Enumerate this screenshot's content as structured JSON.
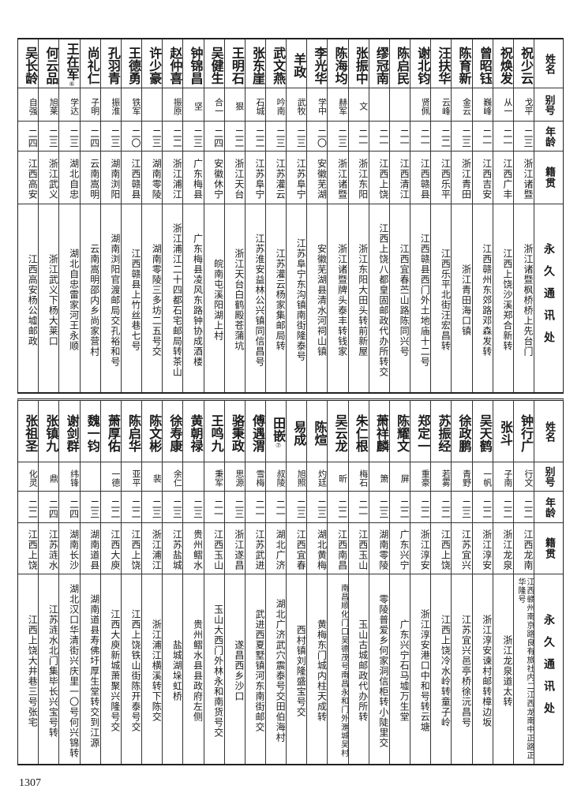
{
  "header": {
    "name": "姓名",
    "alias": "别号",
    "age": "年龄",
    "native": "籍贯",
    "address": "永久通讯处"
  },
  "top_rows": [
    {
      "name": "祝少云",
      "alias": "戈平",
      "age": "二三",
      "native": "浙江诸暨",
      "address": "浙江诸暨枫桥桥上先台门"
    },
    {
      "name": "祝焕发",
      "alias": "从一",
      "age": "二一",
      "native": "江西广丰",
      "address": "江西上饶沙溪郑合新转"
    },
    {
      "name": "曾昭钰",
      "alias": "巍峰",
      "age": "二一",
      "native": "江西吉安",
      "address": "江西赣州东郊路邓森发转"
    },
    {
      "name": "陈育新",
      "alias": "金云",
      "age": "二三",
      "native": "浙江青田",
      "address": "浙江青田海口镇"
    },
    {
      "name": "汪扶华",
      "alias": "云峰",
      "age": "二二",
      "native": "江西乐平",
      "address": "江西乐平北街汪宏昌转"
    },
    {
      "name": "谢北钧",
      "alias": "贤佩",
      "age": "二一",
      "native": "江西赣县",
      "address": "江西赣县西门外土地庙十二号"
    },
    {
      "name": "陈启民",
      "alias": "",
      "age": "二一",
      "native": "江西清江",
      "address": "江西宜春苎山路陈同兴号"
    },
    {
      "name": "缪冠南",
      "alias": "",
      "age": "二一",
      "native": "江西上饶",
      "address": "江西上饶八都皇固邮政代办所转交"
    },
    {
      "name": "张振中",
      "alias": "文",
      "age": "二一",
      "native": "浙江东阳",
      "address": "浙江东阳大田头转前新屋"
    },
    {
      "name": "陈海均",
      "alias": "赫军",
      "age": "二三",
      "native": "浙江诸暨",
      "address": "浙江诸暨牌头泰丰转钱家"
    },
    {
      "name": "李光华",
      "alias": "学中",
      "age": "二〇",
      "native": "安徽芜湖",
      "address": "安徽芜湖县清水河祠山镇"
    },
    {
      "name": "羊政",
      "alias": "武牧",
      "age": "二三",
      "native": "江苏阜宁",
      "address": "江苏阜宁东沟镇南街隆泰号"
    },
    {
      "name": "武文燕",
      "alias": "吟南",
      "age": "二三",
      "native": "江苏灌云",
      "address": "江苏灌云杨家集邮局转"
    },
    {
      "name": "张东崖",
      "alias": "石城",
      "age": "二二",
      "native": "江苏阜宁",
      "address": "江苏淮安益林公兴镇同信昌号"
    },
    {
      "name": "王明石",
      "alias": "狠",
      "age": "二二",
      "native": "浙江天台",
      "address": "浙江天台白鹤殿苍蒲坑"
    },
    {
      "name": "吴健生",
      "alias": "合一",
      "age": "二四",
      "native": "安徽休宁",
      "address": "皖南屯溪阳湖上村"
    },
    {
      "name": "钟锦昌",
      "alias": "坚",
      "age": "二三",
      "native": "广东梅县",
      "address": "广东梅县凌风东路钟协成酒楼"
    },
    {
      "name": "赵仲喜",
      "alias": "振原",
      "age": "二二",
      "native": "浙江浦江",
      "address": "浙江浦江二十四都石宅邮局转茶山"
    },
    {
      "name": "许少豪",
      "alias": "",
      "age": "二三",
      "native": "湖南零陵",
      "address": "湖南零陵三多坊二五号交"
    },
    {
      "name": "王德勇",
      "alias": "铁军",
      "age": "二〇",
      "native": "江西赣县",
      "address": "江西赣县上竹丝巷七号"
    },
    {
      "name": "孔羽青",
      "alias": "振淮",
      "age": "二三",
      "native": "湖南浏阳",
      "address": "湖南浏阳官渡邮局交孔裕和号"
    },
    {
      "name": "尚礼仁",
      "alias": "子明",
      "age": "二四",
      "native": "云南嵩明",
      "address": "云南嵩明邵内乡尚家营村"
    },
    {
      "name": "王在军",
      "note": "⑥",
      "alias": "学达",
      "age": "二三",
      "native": "湖北自忠",
      "address": "湖北自忠雷家河王永顺"
    },
    {
      "name": "何云品",
      "alias": "旭莱",
      "age": "二三",
      "native": "浙江武义",
      "address": "浙江武义下杨大莱口"
    },
    {
      "name": "吴长龄",
      "alias": "自强",
      "age": "二四",
      "native": "江西高安",
      "address": "江西高安杨公墟邮政"
    }
  ],
  "bottom_rows": [
    {
      "name": "钟行广",
      "alias": "行文",
      "age": "二二",
      "native": "江西龙南",
      "address": "江西赣州南京路良有旅社内二江西龙南中正路正华隆号"
    },
    {
      "name": "张斗",
      "alias": "子南",
      "age": "二二",
      "native": "浙江龙泉",
      "address": "浙江龙泉道太转"
    },
    {
      "name": "吴天鹤",
      "alias": "一帆",
      "age": "二二",
      "native": "浙江淳安",
      "address": "浙江淳安谏村邮转樟边坂"
    },
    {
      "name": "徐政鹏",
      "alias": "青野",
      "age": "二三",
      "native": "江苏宜兴",
      "address": "江苏宜兴邑亭桥徐沅昌号"
    },
    {
      "name": "苏振经",
      "alias": "若雾",
      "age": "二二",
      "native": "江西上饶",
      "address": "江西上饶冷水岭转童子岭"
    },
    {
      "name": "郑定一",
      "alias": "重豪",
      "age": "二二",
      "native": "浙江淳安",
      "address": "浙江淳安港口中和号转云塘"
    },
    {
      "name": "陈耀文",
      "alias": "屏",
      "age": "二二",
      "native": "广东兴宁",
      "address": "广东兴宁石马墟万生堂"
    },
    {
      "name": "萧祥麟",
      "alias": "箫",
      "age": "二三",
      "native": "湖南零陵",
      "address": "零陵普爱乡何家洞信柜转小陡里交"
    },
    {
      "name": "朱仁根",
      "alias": "梅石",
      "age": "二一",
      "native": "江西玉山",
      "address": "玉山古城邮政代办所转"
    },
    {
      "name": "吴云龙",
      "alias": "昕",
      "age": "二二",
      "native": "江西南昌",
      "address": "南昌顺化门口吴德茂号南昌永和门外滙城吴村"
    },
    {
      "name": "陈煊",
      "alias": "灼廷",
      "age": "二三",
      "native": "湖北黄梅",
      "address": "黄梅东门城内柱天成转"
    },
    {
      "name": "易成",
      "alias": "旭照",
      "age": "二三",
      "native": "江西宜春",
      "address": "西村镇刘隆盛宝号交"
    },
    {
      "name": "田嵌",
      "note": "⑦",
      "alias": "叔陵",
      "age": "二一",
      "native": "湖北广济",
      "address": "湖北广济武穴震泰号交田伯海村"
    },
    {
      "name": "傅遇渭",
      "alias": "雪梅",
      "age": "二一",
      "native": "江苏武进",
      "address": "武进西夏墅镇河东南街邮交"
    },
    {
      "name": "骆秉政",
      "alias": "思源",
      "age": "二三",
      "native": "浙江遂昌",
      "address": "遂昌西乡沙口"
    },
    {
      "name": "王鸣九",
      "alias": "秉军",
      "age": "二一",
      "native": "江西玉山",
      "address": "玉山大西门外林永和南货号交"
    },
    {
      "name": "黄朝禄",
      "alias": "",
      "age": "二三",
      "native": "贵州鳛水",
      "address": "贵州鳛水县县政府左侧"
    },
    {
      "name": "徐寿康",
      "alias": "余仁",
      "age": "二三",
      "native": "江苏盐城",
      "address": "盐城湖垛虹桥"
    },
    {
      "name": "陈文彬",
      "alias": "裴",
      "age": "二三",
      "native": "浙江浦江",
      "address": "浙江浦江横溪转下陈交"
    },
    {
      "name": "陈启华",
      "alias": "亚平",
      "age": "二二",
      "native": "江西上饶",
      "address": "江西上饶铁山街陈开泰号交"
    },
    {
      "name": "萧厚佑",
      "alias": "一德",
      "age": "二二",
      "native": "江西大庾",
      "address": "江西大庾新城萧聚兴隆号交"
    },
    {
      "name": "魏一钧",
      "alias": "",
      "age": "二三",
      "native": "湖南道县",
      "address": "湖南道县寿佛圩厚生堂转交到江源"
    },
    {
      "name": "谢剑群",
      "alias": "纬锋",
      "age": "二四",
      "native": "湖南长沙",
      "address": "湖北汉口华清街兴庆里一〇号何兴锦转"
    },
    {
      "name": "张镇九",
      "alias": "鼎",
      "age": "二四",
      "native": "江苏涟水",
      "address": "江苏涟水北门集毕长兴宝号转"
    },
    {
      "name": "张祖圣",
      "alias": "化灵",
      "age": "二二",
      "native": "江西上饶",
      "address": "江西上饶大井巷三号张宅"
    }
  ],
  "page_number": "1307"
}
